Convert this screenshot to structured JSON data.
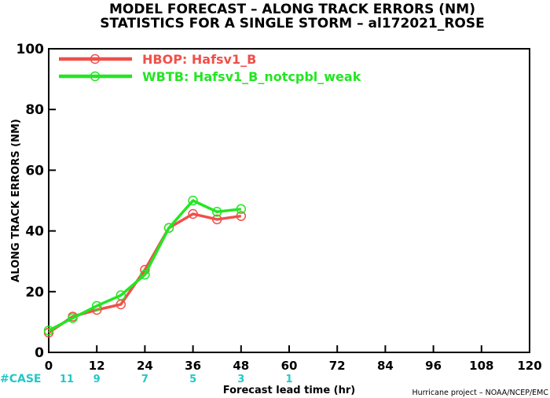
{
  "chart_data": {
    "type": "line",
    "title": "MODEL FORECAST – ALONG TRACK ERRORS (NM)",
    "subtitle": "STATISTICS FOR A SINGLE STORM – al172021_ROSE",
    "xlabel": "Forecast lead time (hr)",
    "ylabel": "ALONG TRACK ERRORS (NM)",
    "xlim": [
      0,
      120
    ],
    "ylim": [
      0,
      100
    ],
    "xticks": [
      0,
      12,
      24,
      36,
      48,
      60,
      72,
      84,
      96,
      108,
      120
    ],
    "yticks": [
      0,
      20,
      40,
      60,
      80,
      100
    ],
    "grid": false,
    "legend_position": "top-left",
    "x": [
      0,
      6,
      12,
      18,
      24,
      30,
      36,
      42,
      48
    ],
    "series": [
      {
        "name": "HBOP: Hafsv1_B",
        "color": "#f0504a",
        "values": [
          6.5,
          11.8,
          14.0,
          15.8,
          27.2,
          41.0,
          45.6,
          43.8,
          44.9
        ]
      },
      {
        "name": "WBTB: Hafsv1_B_notcpbl_weak",
        "color": "#22e622",
        "values": [
          7.2,
          11.3,
          15.3,
          18.8,
          25.6,
          41.0,
          50.0,
          46.3,
          47.2
        ]
      }
    ],
    "case_counts": {
      "label": "#CASE",
      "x": [
        0,
        12,
        24,
        36,
        48,
        60
      ],
      "values": [
        "11",
        "9",
        "7",
        "5",
        "3",
        "1"
      ],
      "color": "#22c8c8"
    },
    "credit": "Hurricane project – NOAA/NCEP/EMC"
  }
}
